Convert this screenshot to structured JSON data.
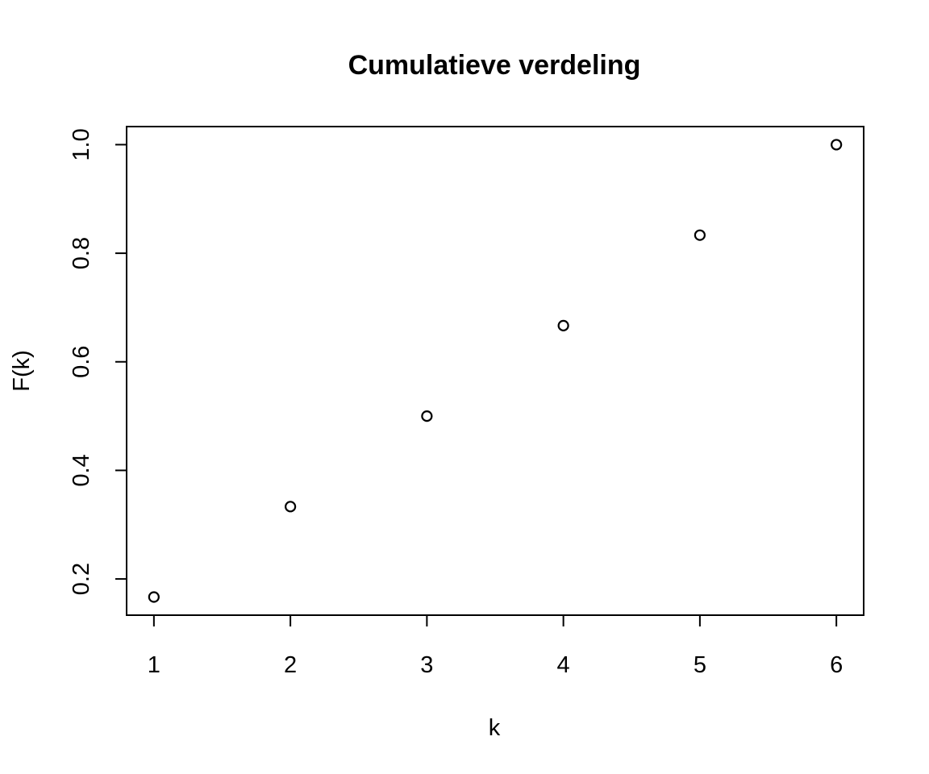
{
  "chart_data": {
    "type": "scatter",
    "title": "Cumulatieve verdeling",
    "xlabel": "k",
    "ylabel": "F(k)",
    "x": [
      1,
      2,
      3,
      4,
      5,
      6
    ],
    "y": [
      0.1667,
      0.3333,
      0.5,
      0.6667,
      0.8333,
      1.0
    ],
    "xlim": [
      0.8,
      6.2
    ],
    "ylim": [
      0.1333,
      1.0333
    ],
    "xticks": [
      1,
      2,
      3,
      4,
      5,
      6
    ],
    "xtick_labels": [
      "1",
      "2",
      "3",
      "4",
      "5",
      "6"
    ],
    "yticks": [
      0.2,
      0.4,
      0.6,
      0.8,
      1.0
    ],
    "ytick_labels": [
      "0.2",
      "0.4",
      "0.6",
      "0.8",
      "1.0"
    ],
    "grid": false,
    "marker": "open-circle",
    "colors": {
      "points": "#000000",
      "axes": "#000000",
      "background": "#ffffff"
    }
  }
}
